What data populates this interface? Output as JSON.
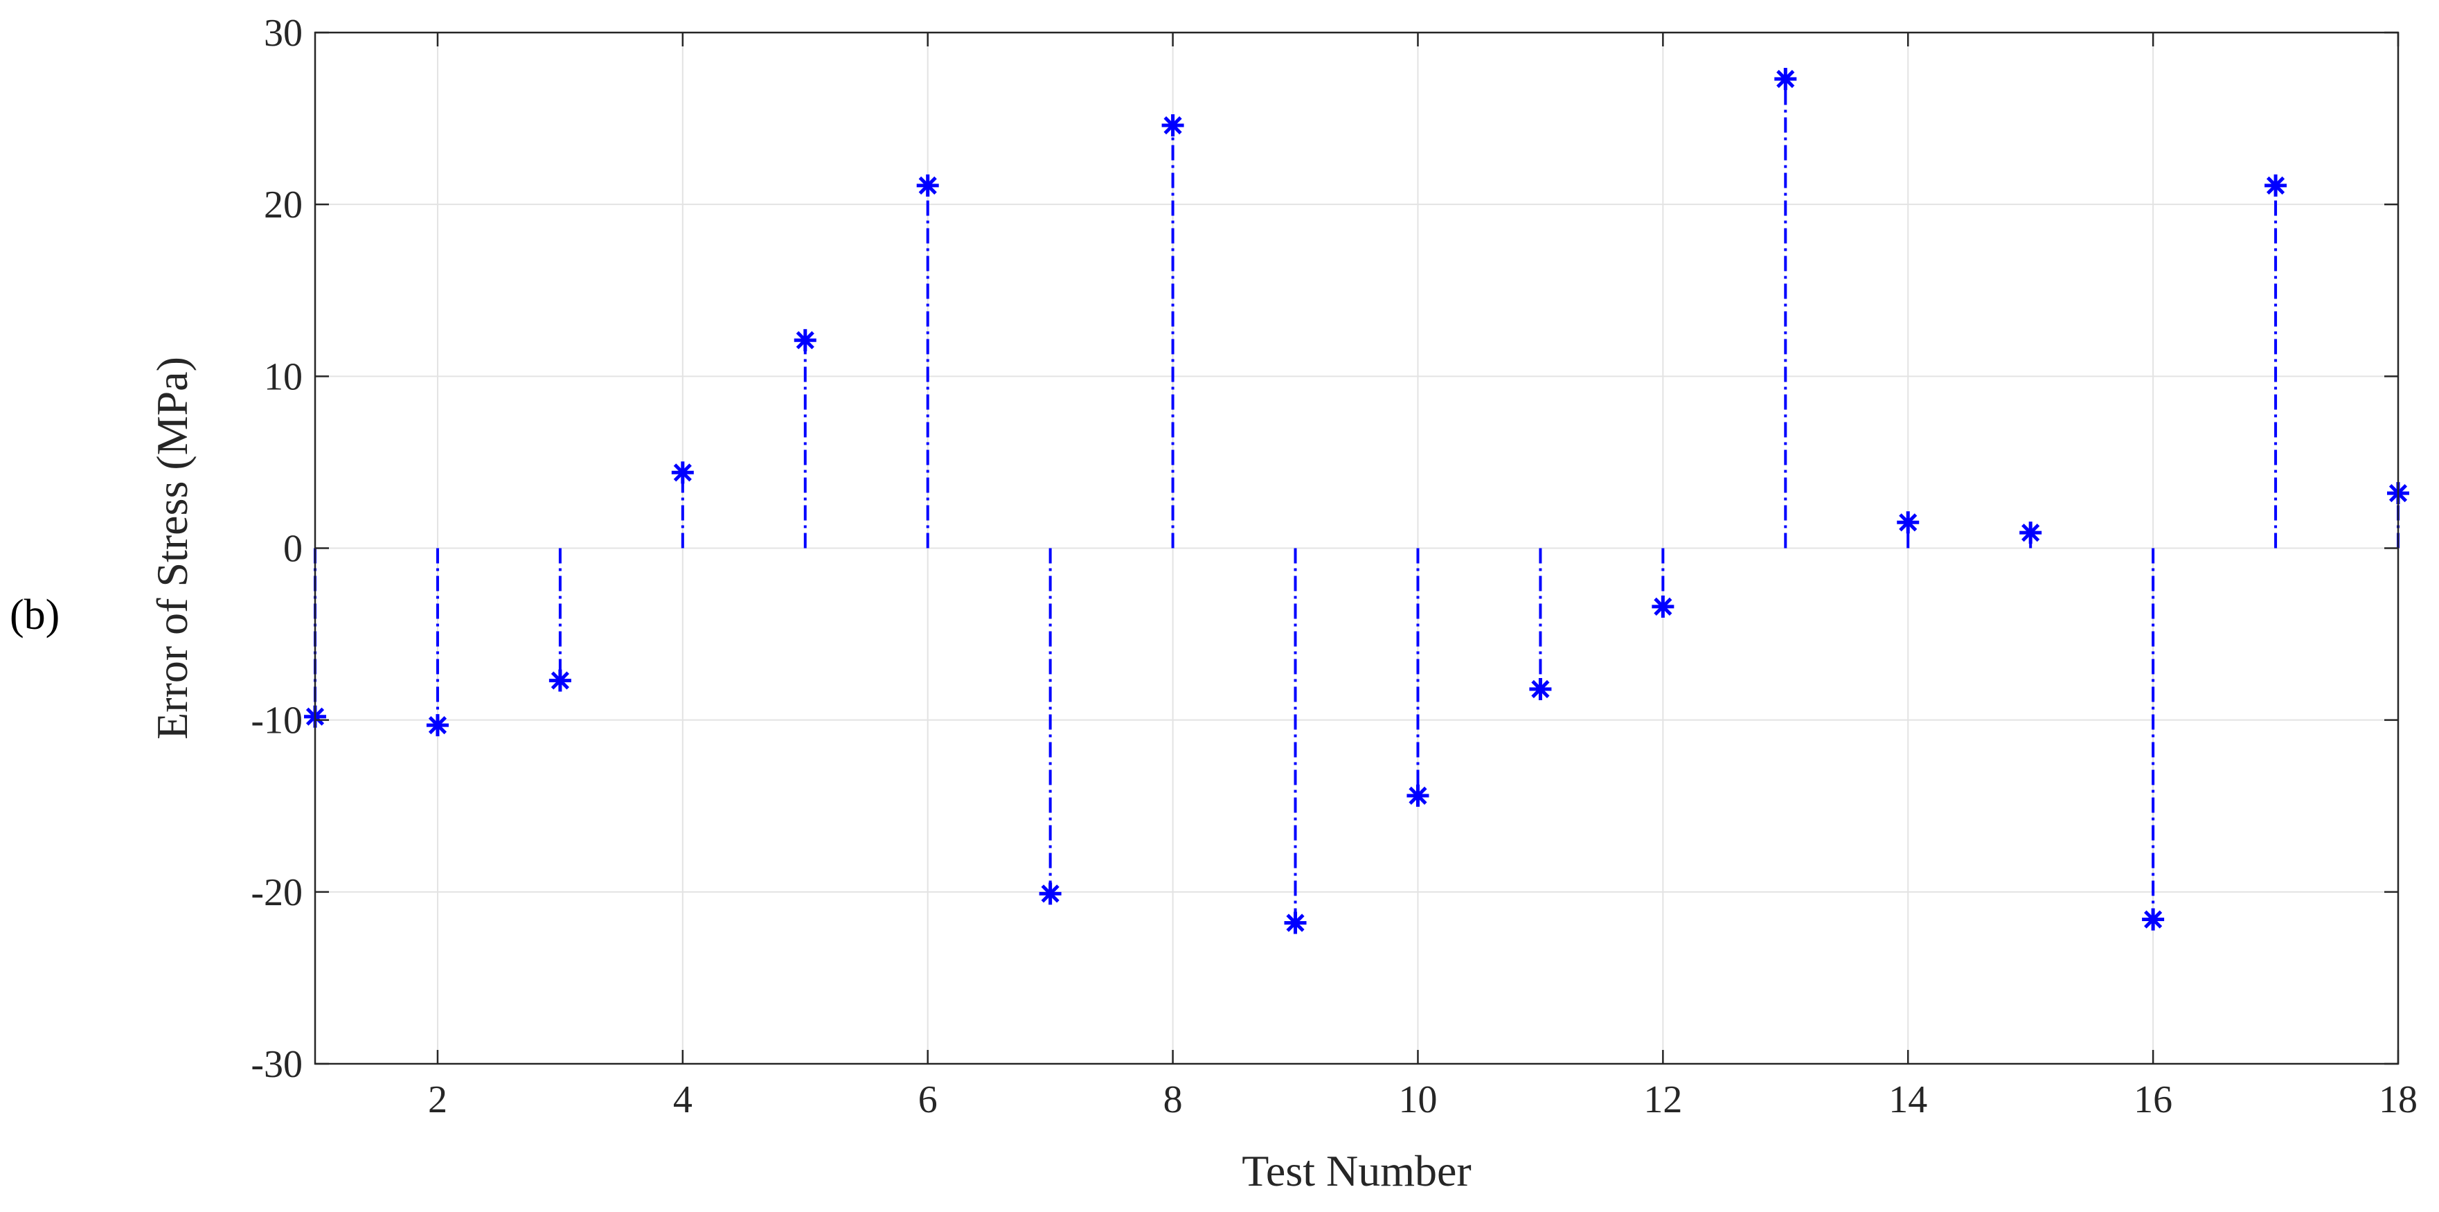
{
  "panel_label": "(b)",
  "chart_data": {
    "type": "stem",
    "xlabel": "Test Number",
    "ylabel": "Error of Stress (MPa)",
    "xlim": [
      1,
      18
    ],
    "ylim": [
      -30,
      30
    ],
    "x_ticks": [
      2,
      4,
      6,
      8,
      10,
      12,
      14,
      16,
      18
    ],
    "y_ticks": [
      -30,
      -20,
      -10,
      0,
      10,
      20,
      30
    ],
    "grid": true,
    "baseline": 0,
    "line_style": "dash-dot",
    "marker": "asterisk",
    "color": "#0000ff",
    "series": [
      {
        "x": [
          1,
          2,
          3,
          4,
          5,
          6,
          7,
          8,
          9,
          10,
          11,
          12,
          13,
          14,
          15,
          16,
          17,
          18
        ],
        "values": [
          -9.8,
          -10.3,
          -7.7,
          4.4,
          12.1,
          21.1,
          -20.1,
          24.6,
          -21.8,
          -14.4,
          -8.2,
          -3.4,
          27.3,
          1.5,
          0.9,
          -21.6,
          21.1,
          3.2
        ]
      }
    ]
  }
}
